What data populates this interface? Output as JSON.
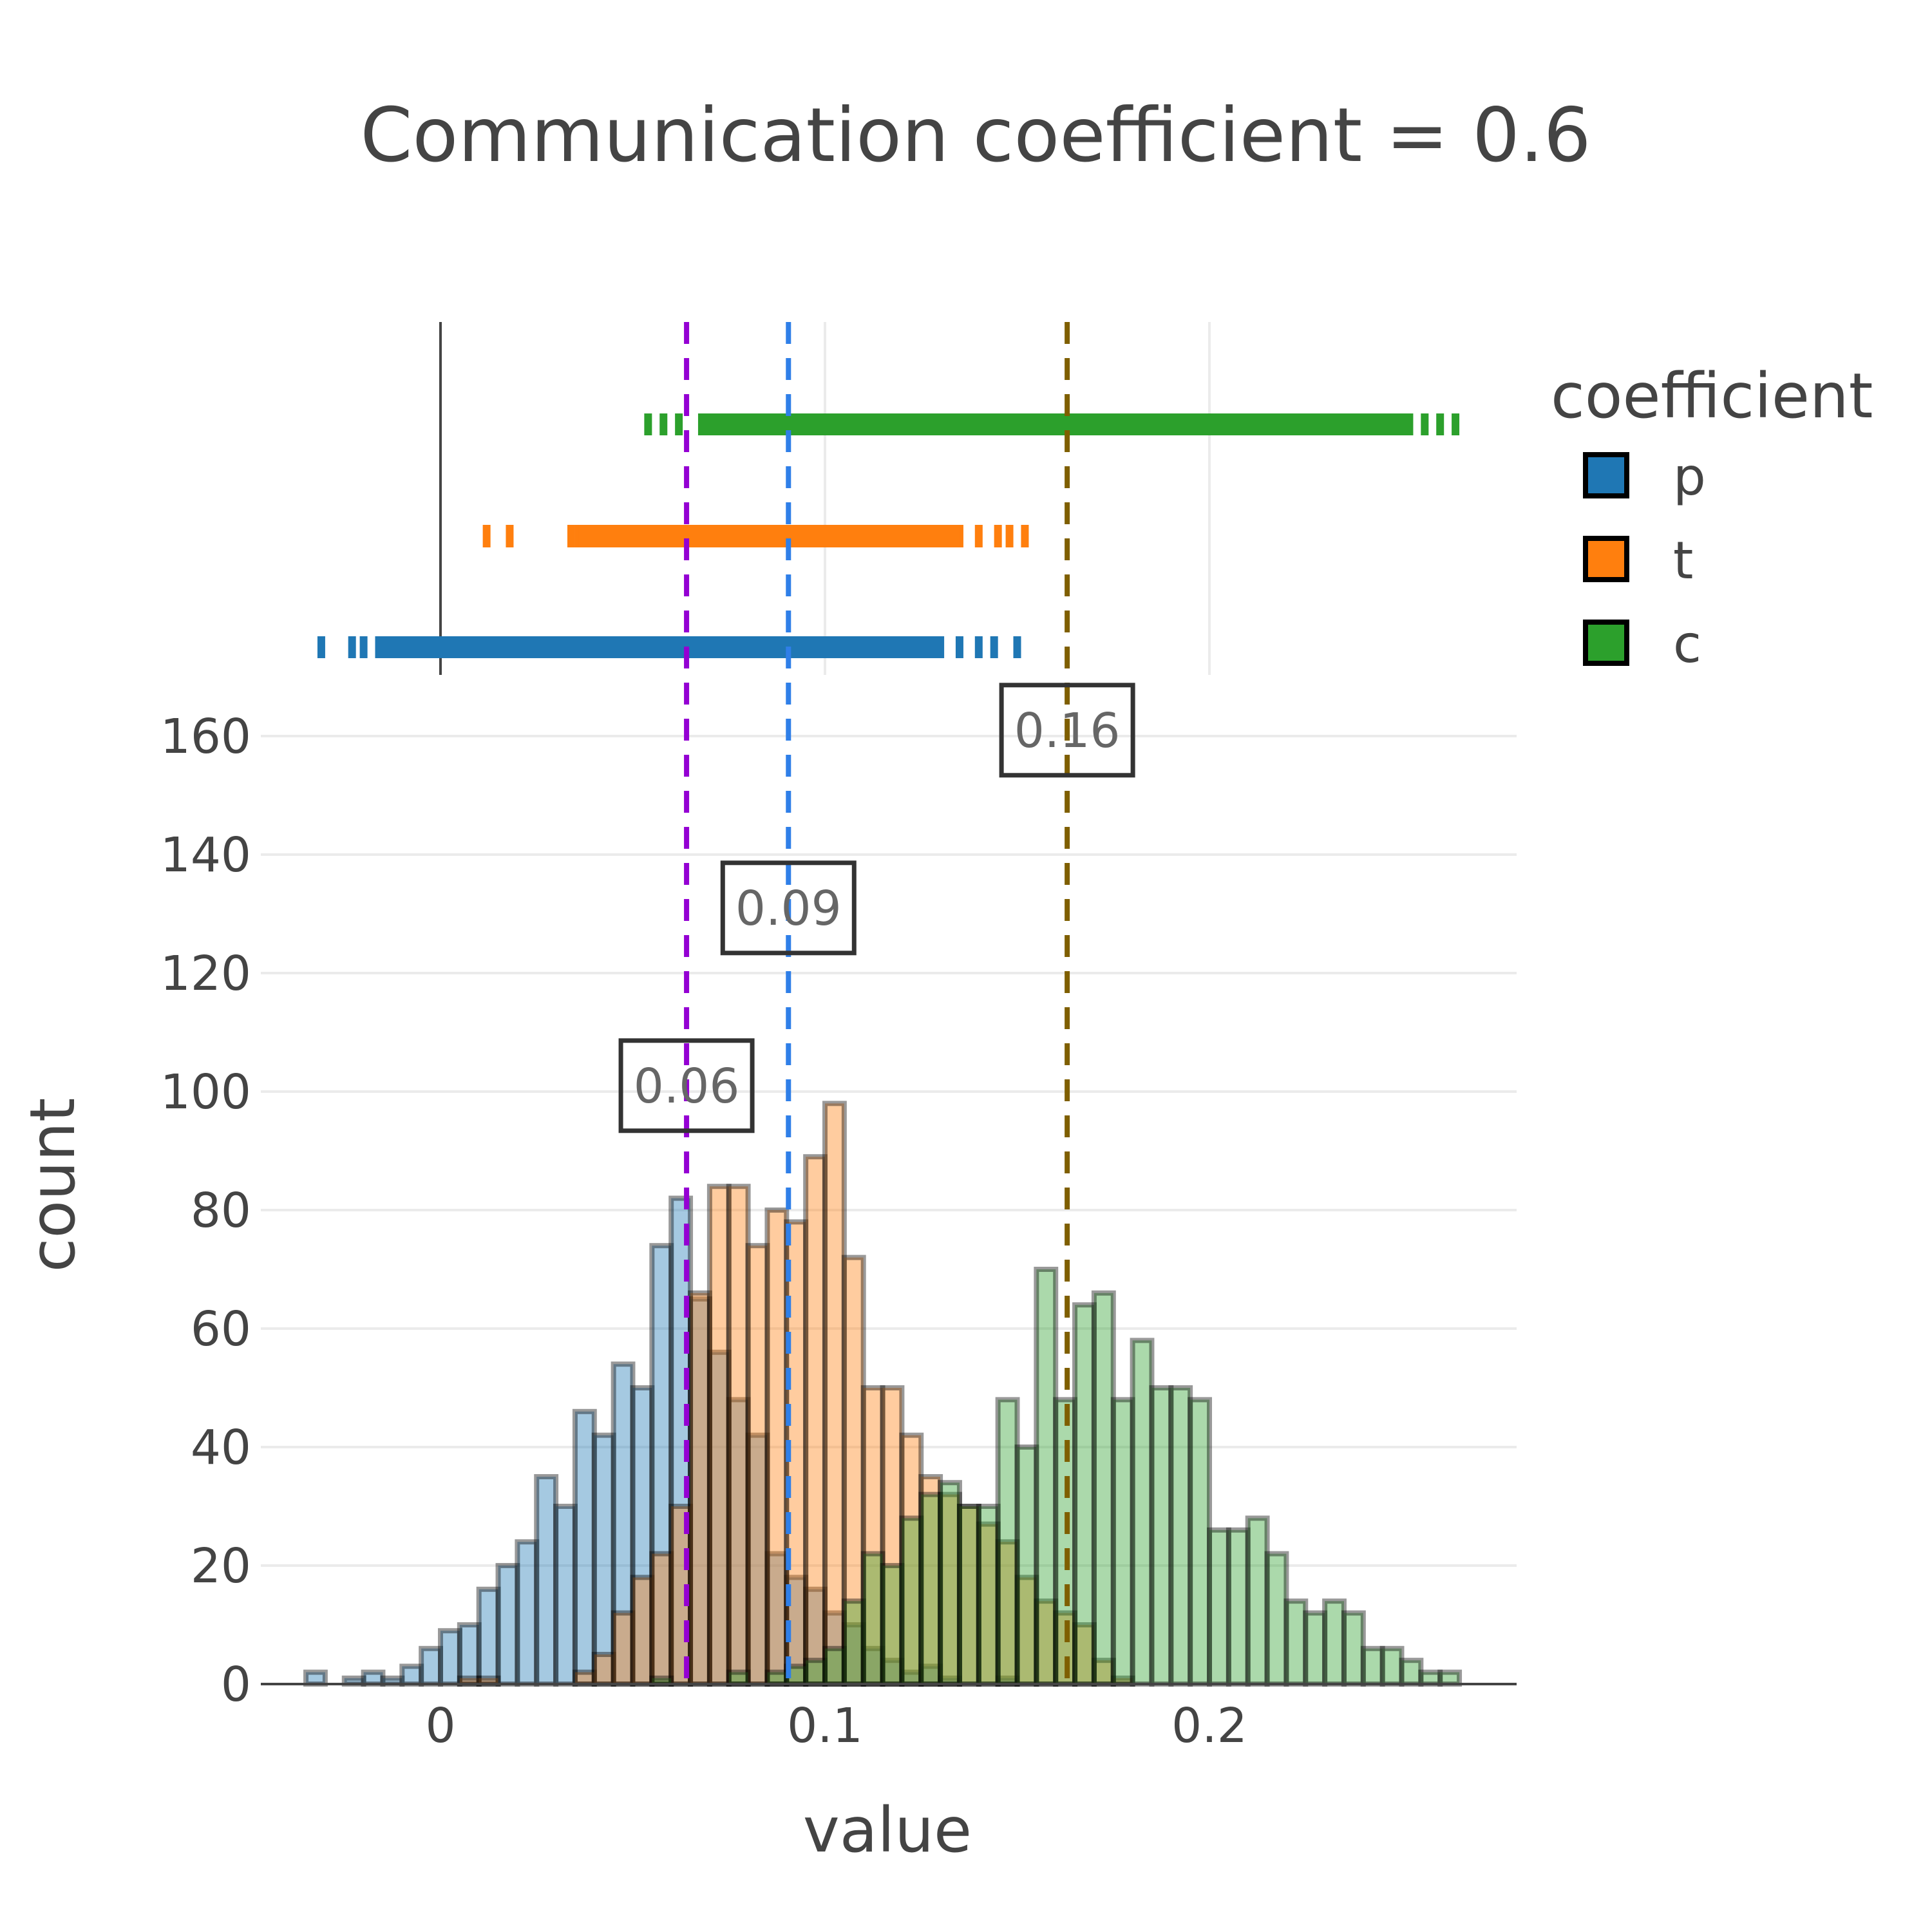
{
  "chart_data": {
    "type": "histogram",
    "title": "Communication coefficient = 0.6",
    "xlabel": "value",
    "ylabel": "count",
    "xlim": [
      -0.047,
      0.28
    ],
    "ylim": [
      0,
      170
    ],
    "x_ticks": [
      0,
      0.1,
      0.2
    ],
    "x_tick_labels": [
      "0",
      "0.1",
      "0.2"
    ],
    "y_ticks": [
      0,
      20,
      40,
      60,
      80,
      100,
      120,
      140,
      160
    ],
    "y_tick_labels": [
      "0",
      "20",
      "40",
      "60",
      "80",
      "100",
      "120",
      "140",
      "160"
    ],
    "bin_start": -0.035,
    "bin_width": 0.005,
    "grid": true,
    "legend": {
      "title": "coefficient",
      "placement": "right"
    },
    "series": [
      {
        "name": "p",
        "color": "#1f77b4",
        "counts": [
          2,
          0,
          1,
          2,
          1,
          3,
          6,
          9,
          10,
          16,
          20,
          24,
          35,
          30,
          46,
          42,
          54,
          50,
          74,
          82,
          65,
          56,
          48,
          42,
          22,
          18,
          16,
          12,
          10,
          6,
          4,
          2,
          3,
          1,
          0,
          0,
          1,
          0
        ]
      },
      {
        "name": "t",
        "color": "#ff7f0e",
        "counts": [
          0,
          0,
          0,
          0,
          0,
          0,
          0,
          0,
          1,
          1,
          0,
          0,
          0,
          0,
          2,
          5,
          12,
          18,
          22,
          30,
          66,
          84,
          84,
          74,
          80,
          78,
          89,
          98,
          72,
          50,
          50,
          42,
          35,
          32,
          30,
          27,
          24,
          18,
          14,
          12,
          10,
          4,
          1
        ]
      },
      {
        "name": "c",
        "color": "#2ca02c",
        "counts": [
          0,
          0,
          0,
          0,
          0,
          0,
          0,
          0,
          0,
          0,
          0,
          0,
          0,
          0,
          0,
          0,
          0,
          0,
          1,
          0,
          0,
          0,
          2,
          0,
          2,
          3,
          4,
          6,
          14,
          22,
          20,
          28,
          32,
          34,
          30,
          30,
          48,
          40,
          70,
          48,
          64,
          66,
          48,
          58,
          50,
          50,
          48,
          26,
          26,
          28,
          22,
          14,
          12,
          14,
          12,
          6,
          6,
          4,
          2,
          2,
          0,
          0,
          0,
          0
        ]
      }
    ],
    "rugs": [
      {
        "name": "c",
        "color": "#2ca02c",
        "values": [
          0.054,
          0.058,
          0.062,
          0.068,
          0.07,
          0.072,
          0.075,
          0.078,
          0.082,
          0.086,
          0.088,
          0.09,
          0.092,
          0.094,
          0.096,
          0.098,
          0.1,
          0.105,
          0.11,
          0.115,
          0.12,
          0.125,
          0.13,
          0.135,
          0.14,
          0.145,
          0.15,
          0.155,
          0.16,
          0.165,
          0.17,
          0.175,
          0.18,
          0.185,
          0.19,
          0.195,
          0.2,
          0.205,
          0.21,
          0.215,
          0.22,
          0.225,
          0.23,
          0.235,
          0.24,
          0.244,
          0.25,
          0.252,
          0.256,
          0.26,
          0.264
        ]
      },
      {
        "name": "t",
        "color": "#ff7f0e",
        "values": [
          0.012,
          0.018,
          0.034,
          0.036,
          0.038,
          0.04,
          0.042,
          0.045,
          0.048,
          0.05,
          0.055,
          0.06,
          0.065,
          0.07,
          0.075,
          0.08,
          0.085,
          0.09,
          0.095,
          0.1,
          0.105,
          0.11,
          0.115,
          0.12,
          0.125,
          0.13,
          0.135,
          0.14,
          0.145,
          0.148,
          0.152
        ]
      },
      {
        "name": "p",
        "color": "#1f77b4",
        "values": [
          -0.031,
          -0.023,
          -0.02,
          -0.016,
          -0.012,
          -0.008,
          -0.005,
          -0.002,
          0.0,
          0.003,
          0.006,
          0.01,
          0.015,
          0.02,
          0.025,
          0.03,
          0.035,
          0.04,
          0.045,
          0.05,
          0.055,
          0.06,
          0.065,
          0.07,
          0.075,
          0.08,
          0.085,
          0.09,
          0.095,
          0.1,
          0.105,
          0.11,
          0.115,
          0.12,
          0.125,
          0.13,
          0.135,
          0.14,
          0.144,
          0.15
        ]
      }
    ],
    "reference_lines": [
      {
        "value": 0.064,
        "color": "#9400d3",
        "label": "0.06",
        "label_y": 101
      },
      {
        "value": 0.0905,
        "color": "#2f7fe8",
        "label": "0.09",
        "label_y": 131
      },
      {
        "value": 0.163,
        "color": "#7f5f00",
        "label": "0.16",
        "label_y": 161
      }
    ]
  }
}
